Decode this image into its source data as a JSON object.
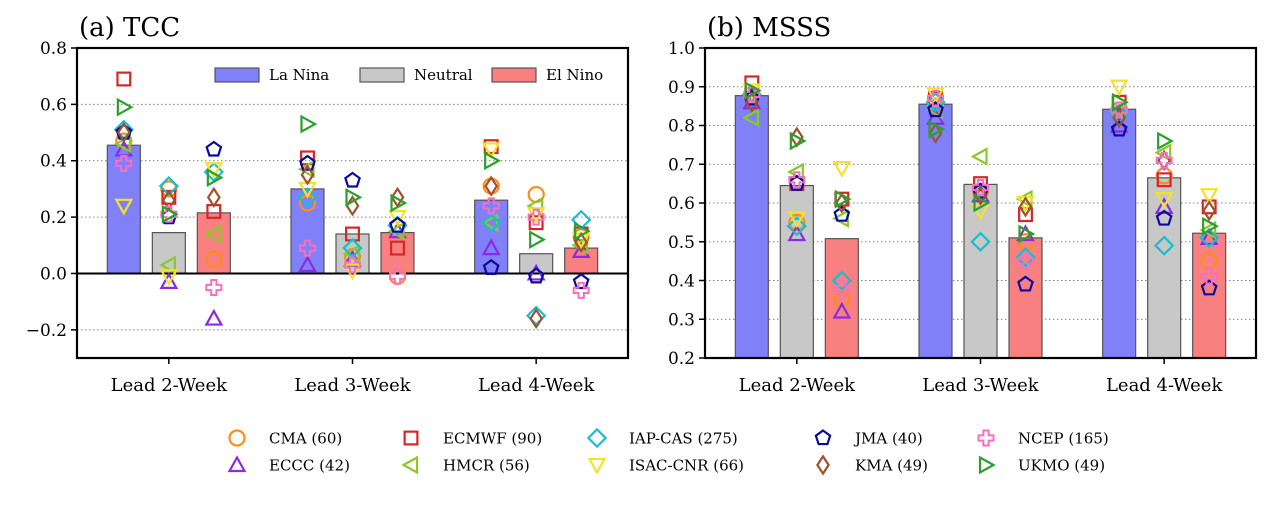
{
  "chart_data": [
    {
      "type": "bar",
      "title": "(a) TCC",
      "categories": [
        "Lead 2-Week",
        "Lead 3-Week",
        "Lead 4-Week"
      ],
      "ylim": [
        -0.3,
        0.8
      ],
      "yticks": [
        -0.2,
        0.0,
        0.2,
        0.4,
        0.6,
        0.8
      ],
      "ytick_labels": [
        "−0.2",
        "0.0",
        "0.2",
        "0.4",
        "0.6",
        "0.8"
      ],
      "zero_line": true,
      "grid": "horizontal-dotted",
      "legend_position": "top-right",
      "series": [
        {
          "name": "La Nina",
          "color": "#8080f8",
          "values": [
            0.455,
            0.3,
            0.26
          ]
        },
        {
          "name": "Neutral",
          "color": "#c8c8c8",
          "values": [
            0.145,
            0.14,
            0.07
          ]
        },
        {
          "name": "El Nino",
          "color": "#f88080",
          "values": [
            0.215,
            0.145,
            0.09
          ]
        }
      ],
      "models": [
        {
          "name": "CMA",
          "values": [
            [
              0.47,
              0.3,
              0.05
            ],
            [
              0.25,
              0.06,
              -0.01
            ],
            [
              0.31,
              0.28,
              0.13
            ]
          ]
        },
        {
          "name": "ECCC",
          "values": [
            [
              0.44,
              -0.03,
              -0.16
            ],
            [
              0.03,
              0.05,
              0.15
            ],
            [
              0.09,
              0.0,
              0.08
            ]
          ]
        },
        {
          "name": "ECMWF",
          "values": [
            [
              0.69,
              0.27,
              0.22
            ],
            [
              0.41,
              0.14,
              0.09
            ],
            [
              0.45,
              0.18,
              0.14
            ]
          ]
        },
        {
          "name": "HMCR",
          "values": [
            [
              0.46,
              0.03,
              0.14
            ],
            [
              0.37,
              0.07,
              0.15
            ],
            [
              0.18,
              0.24,
              0.1
            ]
          ]
        },
        {
          "name": "IAP-CAS",
          "values": [
            [
              0.51,
              0.31,
              0.36
            ],
            [
              0.27,
              0.09,
              0.17
            ],
            [
              0.18,
              -0.15,
              0.19
            ]
          ]
        },
        {
          "name": "ISAC-CNR",
          "values": [
            [
              0.24,
              -0.01,
              0.37
            ],
            [
              0.3,
              0.01,
              0.2
            ],
            [
              0.44,
              0.21,
              0.12
            ]
          ]
        },
        {
          "name": "JMA",
          "values": [
            [
              0.5,
              0.2,
              0.44
            ],
            [
              0.39,
              0.33,
              0.17
            ],
            [
              0.02,
              -0.01,
              -0.03
            ]
          ]
        },
        {
          "name": "KMA",
          "values": [
            [
              0.5,
              0.26,
              0.27
            ],
            [
              0.35,
              0.24,
              0.27
            ],
            [
              0.31,
              -0.16,
              0.11
            ]
          ]
        },
        {
          "name": "NCEP",
          "values": [
            [
              0.39,
              0.21,
              -0.05
            ],
            [
              0.09,
              0.03,
              -0.01
            ],
            [
              0.24,
              0.2,
              -0.06
            ]
          ]
        },
        {
          "name": "UKMO",
          "values": [
            [
              0.59,
              0.21,
              0.34
            ],
            [
              0.53,
              0.27,
              0.25
            ],
            [
              0.4,
              0.12,
              0.15
            ]
          ]
        }
      ]
    },
    {
      "type": "bar",
      "title": "(b) MSSS",
      "categories": [
        "Lead 2-Week",
        "Lead 3-Week",
        "Lead 4-Week"
      ],
      "ylim": [
        0.2,
        1.0
      ],
      "yticks": [
        0.2,
        0.3,
        0.4,
        0.5,
        0.6,
        0.7,
        0.8,
        0.9,
        1.0
      ],
      "ytick_labels": [
        "0.2",
        "0.3",
        "0.4",
        "0.5",
        "0.6",
        "0.7",
        "0.8",
        "0.9",
        "1.0"
      ],
      "zero_line": false,
      "grid": "horizontal-dotted",
      "series": [
        {
          "name": "La Nina",
          "color": "#8080f8",
          "values": [
            0.877,
            0.855,
            0.842
          ]
        },
        {
          "name": "Neutral",
          "color": "#c8c8c8",
          "values": [
            0.645,
            0.648,
            0.665
          ]
        },
        {
          "name": "El Nino",
          "color": "#f88080",
          "values": [
            0.508,
            0.51,
            0.522
          ]
        }
      ],
      "models": [
        {
          "name": "CMA",
          "values": [
            [
              0.88,
              0.55,
              0.35
            ],
            [
              0.85,
              0.63,
              0.5
            ],
            [
              0.84,
              0.67,
              0.45
            ]
          ]
        },
        {
          "name": "ECCC",
          "values": [
            [
              0.86,
              0.52,
              0.32
            ],
            [
              0.82,
              0.62,
              0.52
            ],
            [
              0.8,
              0.59,
              0.51
            ]
          ]
        },
        {
          "name": "ECMWF",
          "values": [
            [
              0.91,
              0.65,
              0.61
            ],
            [
              0.87,
              0.65,
              0.57
            ],
            [
              0.86,
              0.66,
              0.59
            ]
          ]
        },
        {
          "name": "HMCR",
          "values": [
            [
              0.82,
              0.68,
              0.56
            ],
            [
              0.84,
              0.72,
              0.61
            ],
            [
              0.84,
              0.73,
              0.53
            ]
          ]
        },
        {
          "name": "IAP-CAS",
          "values": [
            [
              0.88,
              0.54,
              0.4
            ],
            [
              0.86,
              0.5,
              0.46
            ],
            [
              0.83,
              0.49,
              0.51
            ]
          ]
        },
        {
          "name": "ISAC-CNR",
          "values": [
            [
              0.89,
              0.56,
              0.69
            ],
            [
              0.88,
              0.58,
              0.6
            ],
            [
              0.9,
              0.61,
              0.62
            ]
          ]
        },
        {
          "name": "JMA",
          "values": [
            [
              0.87,
              0.65,
              0.57
            ],
            [
              0.84,
              0.63,
              0.39
            ],
            [
              0.79,
              0.56,
              0.38
            ]
          ]
        },
        {
          "name": "KMA",
          "values": [
            [
              0.86,
              0.77,
              0.6
            ],
            [
              0.78,
              0.62,
              0.59
            ],
            [
              0.82,
              0.71,
              0.58
            ]
          ]
        },
        {
          "name": "NCEP",
          "values": [
            [
              0.88,
              0.66,
              0.38
            ],
            [
              0.87,
              0.64,
              0.45
            ],
            [
              0.84,
              0.71,
              0.41
            ]
          ]
        },
        {
          "name": "UKMO",
          "values": [
            [
              0.89,
              0.76,
              0.61
            ],
            [
              0.79,
              0.6,
              0.52
            ],
            [
              0.86,
              0.76,
              0.54
            ]
          ]
        }
      ]
    }
  ],
  "legend": {
    "models": [
      {
        "label": "CMA (60)",
        "marker": "circle",
        "color": "#ff8c1a"
      },
      {
        "label": "ECMWF (90)",
        "marker": "square",
        "color": "#d62728"
      },
      {
        "label": "IAP-CAS (275)",
        "marker": "diamond",
        "color": "#17becf"
      },
      {
        "label": "JMA (40)",
        "marker": "pentagon",
        "color": "#0a0aa0"
      },
      {
        "label": "NCEP (165)",
        "marker": "plus",
        "color": "#f470c0"
      },
      {
        "label": "ECCC (42)",
        "marker": "triangle-up",
        "color": "#8a2be2"
      },
      {
        "label": "HMCR (56)",
        "marker": "triangle-left",
        "color": "#8ac926"
      },
      {
        "label": "ISAC-CNR (66)",
        "marker": "triangle-down",
        "color": "#f2e22a"
      },
      {
        "label": "KMA (49)",
        "marker": "thin-diamond",
        "color": "#a0522d"
      },
      {
        "label": "UKMO (49)",
        "marker": "triangle-right",
        "color": "#2ca02c"
      }
    ]
  }
}
